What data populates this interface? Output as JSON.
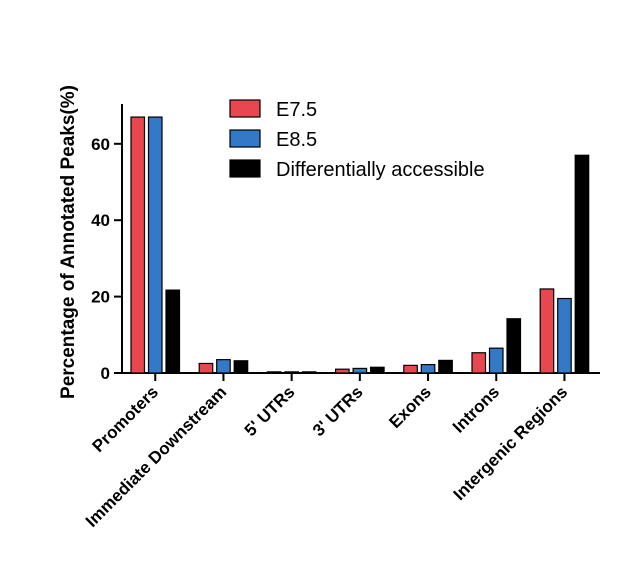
{
  "chart_data": {
    "type": "bar",
    "title": "",
    "xlabel": "",
    "ylabel": "Percentage of Annotated Peaks(%)",
    "ylim": [
      0,
      70
    ],
    "yticks": [
      0,
      20,
      40,
      60
    ],
    "categories": [
      "Promoters",
      "Immediate Downstream",
      "5' UTRs",
      "3' UTRs",
      "Exons",
      "Introns",
      "Intergenic Regions"
    ],
    "series": [
      {
        "name": "E7.5",
        "color": "#e8474f",
        "values": [
          67,
          2.5,
          0.3,
          1.0,
          2.0,
          5.3,
          22.0
        ]
      },
      {
        "name": "E8.5",
        "color": "#3478c8",
        "values": [
          67,
          3.5,
          0.3,
          1.2,
          2.2,
          6.5,
          19.5
        ]
      },
      {
        "name": "Differentially accessible",
        "color": "#000000",
        "values": [
          21.7,
          3.2,
          0.3,
          1.5,
          3.3,
          14.2,
          57.0
        ]
      }
    ],
    "legend_position": "top-center",
    "grid": false
  }
}
